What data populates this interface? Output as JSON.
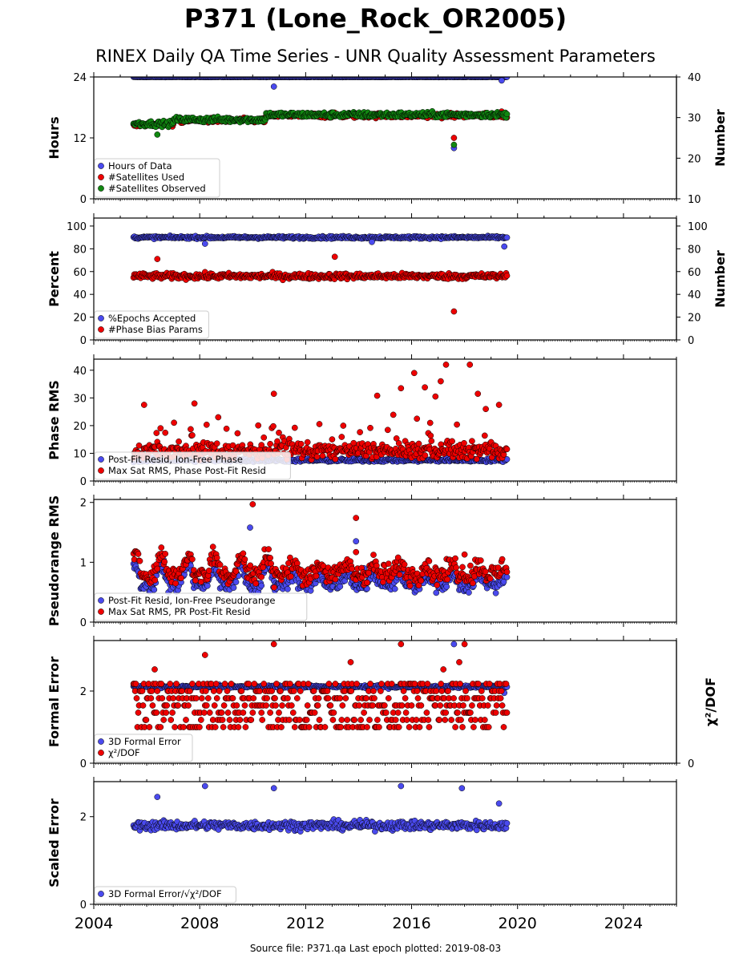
{
  "title": "P371 (Lone_Rock_OR2005)",
  "subtitle": "RINEX Daily QA Time Series - UNR Quality Assessment Parameters",
  "footer": "Source file: P371.qa Last epoch plotted: 2019-08-03",
  "colors": {
    "blue": "#4a4aee",
    "red": "#ee0000",
    "green": "#118811",
    "edge": "#000000"
  },
  "chart_data": [
    {
      "type": "scatter",
      "panel": "hours",
      "ylabel": "Hours",
      "y2label": "Number",
      "xlim": [
        2004,
        2026
      ],
      "ylim": [
        0,
        24
      ],
      "y2lim": [
        10,
        40
      ],
      "yticks": [
        "0",
        "12",
        "24"
      ],
      "y2ticks": [
        "10",
        "20",
        "30",
        "40"
      ],
      "legend_position": "lower-left",
      "series": [
        {
          "name": "Hours of Data",
          "color": "blue",
          "axis": "left",
          "base": 24,
          "noise": 0.05,
          "range": [
            2005.5,
            2019.6
          ],
          "outliers": [
            [
              2010.8,
              22.1
            ],
            [
              2017.6,
              10.0
            ],
            [
              2019.4,
              23.3
            ]
          ]
        },
        {
          "name": "#Satellites Used",
          "color": "red",
          "axis": "right",
          "base": 29.3,
          "noise": 0.8,
          "range": [
            2005.5,
            2019.6
          ],
          "outliers": [
            [
              2017.6,
              25.0
            ],
            [
              2019.4,
              31.5
            ]
          ]
        },
        {
          "name": "#Satellites Observed",
          "color": "green",
          "axis": "right",
          "base": 29.5,
          "noise": 0.9,
          "range": [
            2005.5,
            2019.6
          ],
          "outliers": [
            [
              2006.4,
              25.8
            ],
            [
              2017.6,
              23.3
            ]
          ]
        }
      ]
    },
    {
      "type": "scatter",
      "panel": "percent",
      "ylabel": "Percent",
      "y2label": "Number",
      "xlim": [
        2004,
        2026
      ],
      "ylim": [
        0,
        107
      ],
      "y2lim": [
        0,
        107
      ],
      "yticks": [
        "0",
        "20",
        "40",
        "60",
        "80",
        "100"
      ],
      "y2ticks": [
        "0",
        "20",
        "40",
        "60",
        "80",
        "100"
      ],
      "legend_position": "lower-left",
      "series": [
        {
          "name": "%Epochs Accepted",
          "color": "blue",
          "axis": "left",
          "base": 90,
          "noise": 1.5,
          "range": [
            2005.5,
            2019.6
          ],
          "outliers": [
            [
              2019.5,
              82.0
            ],
            [
              2008.2,
              84.5
            ],
            [
              2014.5,
              86.0
            ]
          ]
        },
        {
          "name": "#Phase Bias Params",
          "color": "red",
          "axis": "right",
          "base": 56,
          "noise": 3.5,
          "range": [
            2005.5,
            2019.6
          ],
          "outliers": [
            [
              2017.6,
              25.0
            ],
            [
              2006.4,
              71.0
            ],
            [
              2013.1,
              73.0
            ]
          ]
        }
      ]
    },
    {
      "type": "scatter",
      "panel": "phase",
      "ylabel": "Phase RMS",
      "xlim": [
        2004,
        2026
      ],
      "ylim": [
        0,
        44
      ],
      "yticks": [
        "0",
        "10",
        "20",
        "30",
        "40"
      ],
      "legend_position": "lower-left",
      "series": [
        {
          "name": "Post-Fit Resid, Ion-Free Phase",
          "color": "blue",
          "base": 7.5,
          "noise": 0.8,
          "range": [
            2005.5,
            2019.6
          ],
          "outliers": []
        },
        {
          "name": "Max Sat RMS, Phase Post-Fit Resid",
          "color": "red",
          "base": 11,
          "noise": 3.5,
          "range": [
            2005.5,
            2019.6
          ],
          "outliers": [
            [
              2005.9,
              27.5
            ],
            [
              2007.8,
              28.0
            ],
            [
              2010.8,
              31.5
            ],
            [
              2014.7,
              30.8
            ],
            [
              2015.6,
              33.5
            ],
            [
              2016.1,
              39.0
            ],
            [
              2016.5,
              33.8
            ],
            [
              2016.9,
              30.5
            ],
            [
              2017.1,
              36.0
            ],
            [
              2017.3,
              42.0
            ],
            [
              2018.2,
              42.0
            ],
            [
              2018.5,
              31.5
            ],
            [
              2018.8,
              26.0
            ],
            [
              2019.3,
              27.5
            ],
            [
              2016.2,
              22.5
            ],
            [
              2016.7,
              21.0
            ],
            [
              2008.7,
              23.0
            ]
          ]
        }
      ]
    },
    {
      "type": "scatter",
      "panel": "pseudorange",
      "ylabel": "Pseudorange RMS",
      "xlim": [
        2004,
        2026
      ],
      "ylim": [
        0,
        2.05
      ],
      "yticks": [
        "0",
        "1",
        "2"
      ],
      "legend_position": "lower-left",
      "series": [
        {
          "name": "Post-Fit Resid, Ion-Free Pseudorange",
          "color": "blue",
          "base": 0.62,
          "noise": 0.15,
          "range": [
            2005.5,
            2019.6
          ],
          "outliers": [
            [
              2009.9,
              1.58
            ],
            [
              2013.9,
              1.35
            ],
            [
              2014.2,
              0.9
            ]
          ]
        },
        {
          "name": "Max Sat RMS, PR Post-Fit Resid",
          "color": "red",
          "base": 0.8,
          "noise": 0.22,
          "range": [
            2005.5,
            2019.6
          ],
          "outliers": [
            [
              2010.0,
              1.97
            ],
            [
              2013.9,
              1.74
            ],
            [
              2013.9,
              1.17
            ],
            [
              2018.0,
              1.13
            ]
          ]
        }
      ]
    },
    {
      "type": "scatter",
      "panel": "formal",
      "ylabel": "Formal Error",
      "y2label": "χ²/DOF",
      "xlim": [
        2004,
        2026
      ],
      "ylim": [
        0,
        3.4
      ],
      "yticks": [
        "0",
        "2"
      ],
      "y2ticks": [
        "0"
      ],
      "legend_position": "lower-left",
      "series": [
        {
          "name": "3D Formal Error",
          "color": "blue",
          "base": 2.12,
          "noise": 0.05,
          "range": [
            2005.5,
            2019.6
          ],
          "outliers": [
            [
              2017.6,
              3.3
            ],
            [
              2019.5,
              1.95
            ]
          ]
        },
        {
          "name": "χ²/DOF",
          "color": "red",
          "levels": [
            1.0,
            1.2,
            1.4,
            1.6,
            1.8,
            2.0,
            2.2
          ],
          "range": [
            2005.5,
            2019.6
          ],
          "outliers": [
            [
              2010.8,
              3.3
            ],
            [
              2015.6,
              3.3
            ],
            [
              2018.0,
              3.3
            ],
            [
              2008.2,
              3.0
            ],
            [
              2006.3,
              2.6
            ],
            [
              2017.2,
              2.6
            ],
            [
              2013.7,
              2.8
            ],
            [
              2017.8,
              2.8
            ]
          ]
        }
      ]
    },
    {
      "type": "scatter",
      "panel": "scaled",
      "ylabel": "Scaled Error",
      "xlabel_ticks": [
        "2004",
        "2008",
        "2012",
        "2016",
        "2020",
        "2024"
      ],
      "xlim": [
        2004,
        2026
      ],
      "ylim": [
        0,
        2.8
      ],
      "yticks": [
        "0",
        "2"
      ],
      "legend_position": "lower-left",
      "series": [
        {
          "name": "3D Formal Error/√χ²/DOF",
          "color": "blue",
          "base": 1.8,
          "noise": 0.14,
          "range": [
            2005.5,
            2019.6
          ],
          "outliers": [
            [
              2008.2,
              2.7
            ],
            [
              2015.6,
              2.7
            ],
            [
              2010.8,
              2.65
            ],
            [
              2017.9,
              2.65
            ],
            [
              2006.4,
              2.45
            ],
            [
              2019.3,
              2.3
            ]
          ]
        }
      ]
    }
  ]
}
